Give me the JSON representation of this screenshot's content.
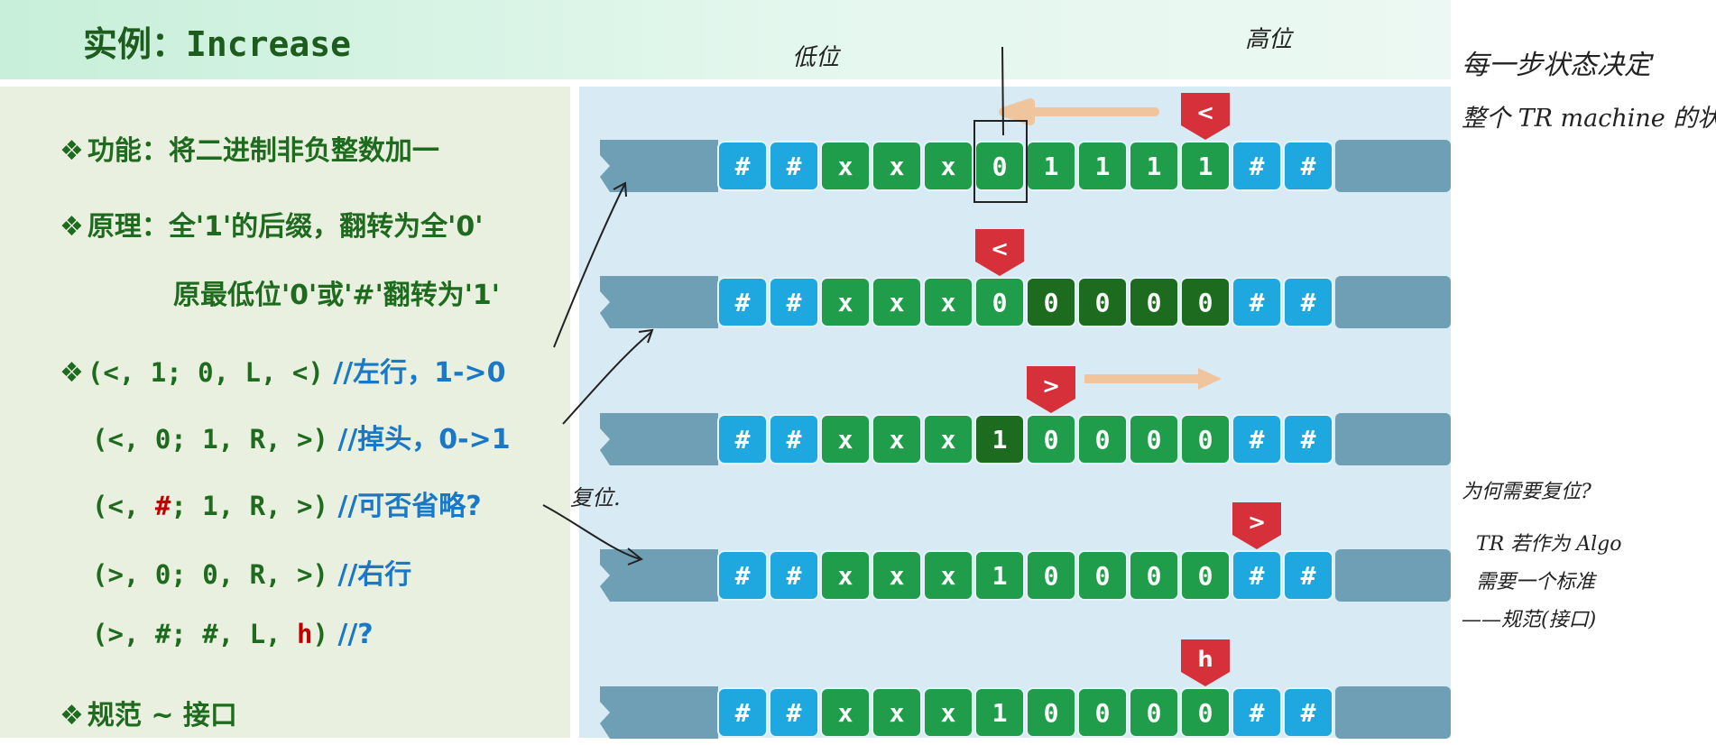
{
  "slide": {
    "title_cn": "实例：",
    "title_en": "Increase",
    "lines": {
      "function": {
        "bullet": "❖",
        "text": "功能：将二进制非负整数加一"
      },
      "principle1": {
        "bullet": "❖",
        "text": "原理：全'1'的后缀，翻转为全'0'"
      },
      "principle2": {
        "text": "原最低位'0'或'#'翻转为'1'"
      },
      "rule1": {
        "bullet": "❖",
        "code": "(<, 1; 0, L, <)",
        "comment": "//左行，1->0"
      },
      "rule2": {
        "code": "(<, 0; 1, R, >)",
        "comment": "//掉头，0->1"
      },
      "rule3": {
        "code_a": "(<, ",
        "code_b": "#",
        "code_c": "; 1, R, >)",
        "comment": "//可否省略?"
      },
      "rule4": {
        "code": "(>, 0; 0, R, >)",
        "comment": "//右行"
      },
      "rule5": {
        "code_a": "(>, #; #, L, ",
        "code_b": "h",
        "code_c": ")",
        "comment": "//?"
      },
      "spec": {
        "bullet": "❖",
        "text": "规范 ~ 接口"
      }
    }
  },
  "colors": {
    "blank_cell": "#1fa7e0",
    "symbol_cell": "#1f9d4a",
    "flipped_cell": "#1d6b1f",
    "tape_body": "#6e9fb5",
    "head": "#d6303a",
    "arrow": "#f0c49c"
  },
  "tapes": [
    {
      "cells": [
        "#",
        "#",
        "x",
        "x",
        "x",
        "0",
        "1",
        "1",
        "1",
        "1",
        "#",
        "#"
      ],
      "flipped": [],
      "head": {
        "symbol": "<",
        "cell": 9
      }
    },
    {
      "cells": [
        "#",
        "#",
        "x",
        "x",
        "x",
        "0",
        "0",
        "0",
        "0",
        "0",
        "#",
        "#"
      ],
      "flipped": [
        6,
        7,
        8,
        9
      ],
      "head": {
        "symbol": "<",
        "cell": 5
      }
    },
    {
      "cells": [
        "#",
        "#",
        "x",
        "x",
        "x",
        "1",
        "0",
        "0",
        "0",
        "0",
        "#",
        "#"
      ],
      "flipped": [
        5
      ],
      "head": {
        "symbol": ">",
        "cell": 6
      }
    },
    {
      "cells": [
        "#",
        "#",
        "x",
        "x",
        "x",
        "1",
        "0",
        "0",
        "0",
        "0",
        "#",
        "#"
      ],
      "flipped": [],
      "head": {
        "symbol": ">",
        "cell": 10
      }
    },
    {
      "cells": [
        "#",
        "#",
        "x",
        "x",
        "x",
        "1",
        "0",
        "0",
        "0",
        "0",
        "#",
        "#"
      ],
      "flipped": [],
      "head": {
        "symbol": "h",
        "cell": 9
      }
    }
  ],
  "annotations": {
    "low_bit": "低位",
    "high_bit": "高位",
    "reset": "复位.",
    "note1_line1": "每一步状态决定",
    "note1_line2": "整个 TR machine 的状态",
    "note2_line1": "为何需要复位?",
    "note2_line2": "TR 若作为 Algo",
    "note2_line3": "需要一个标准",
    "note2_line4": "——规范(接口)"
  }
}
